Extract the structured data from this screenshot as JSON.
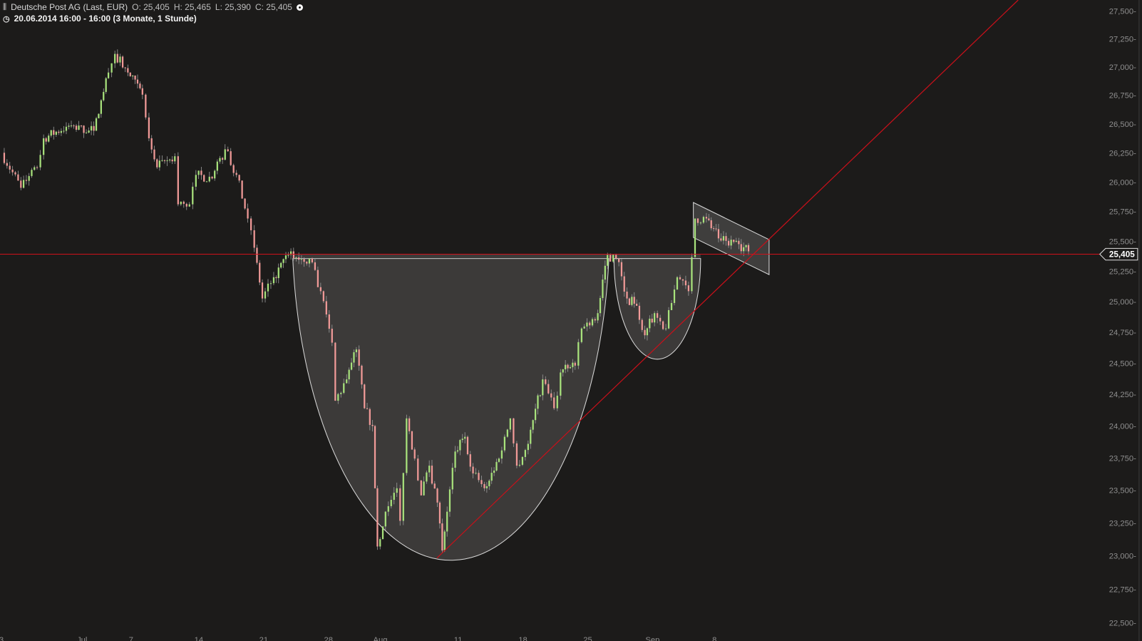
{
  "header": {
    "title": "Deutsche Post AG (Last, EUR)",
    "open": "O: 25,405",
    "high": "H: 25,465",
    "low": "L: 25,390",
    "close": "C: 25,405",
    "period": "20.06.2014 16:00 - 16:00 (3 Monate, 1 Stunde)",
    "icons": [
      "indicator-bars-icon",
      "settings-circle-icon",
      "clock-icon"
    ]
  },
  "chart_data": {
    "type": "candlestick",
    "y_scale": "log",
    "ylim": [
      22500,
      27500
    ],
    "y_ticks": [
      "27,500",
      "27,250",
      "27,000",
      "26,750",
      "26,500",
      "26,250",
      "26,000",
      "25,750",
      "25,500",
      "25,250",
      "25,000",
      "24,750",
      "24,500",
      "24,250",
      "24,000",
      "23,750",
      "23,500",
      "23,250",
      "23,000",
      "22,750",
      "22,500"
    ],
    "y_tick_values": [
      27500,
      27250,
      27000,
      26750,
      26500,
      26250,
      26000,
      25750,
      25500,
      25250,
      25000,
      24750,
      24500,
      24250,
      24000,
      23750,
      23500,
      23250,
      23000,
      22750,
      22500
    ],
    "x_ticks": [
      {
        "label": "3",
        "date": "2014-06-23"
      },
      {
        "label": "Jul",
        "date": "2014-07-01"
      },
      {
        "label": "7",
        "date": "2014-07-07"
      },
      {
        "label": "14",
        "date": "2014-07-14"
      },
      {
        "label": "21",
        "date": "2014-07-21"
      },
      {
        "label": "28",
        "date": "2014-07-28"
      },
      {
        "label": "Aug",
        "date": "2014-08-01"
      },
      {
        "label": "11",
        "date": "2014-08-11"
      },
      {
        "label": "18",
        "date": "2014-08-18"
      },
      {
        "label": "25",
        "date": "2014-08-25"
      },
      {
        "label": "Sep",
        "date": "2014-09-01"
      },
      {
        "label": "8",
        "date": "2014-09-08"
      }
    ],
    "last_price": 25405,
    "last_price_label": "25,405",
    "closes_approx": [
      [
        "2014-06-23 09:00",
        26250
      ],
      [
        "2014-06-24 13:00",
        25950
      ],
      [
        "2014-06-25 15:00",
        26125
      ],
      [
        "2014-06-26 11:00",
        26375
      ],
      [
        "2014-06-27 17:00",
        26475
      ],
      [
        "2014-07-02 10:00",
        26440
      ],
      [
        "2014-07-03 11:00",
        26950
      ],
      [
        "2014-07-03 15:00",
        27115
      ],
      [
        "2014-07-04 15:00",
        26950
      ],
      [
        "2014-07-07 16:00",
        26755
      ],
      [
        "2014-07-08 12:00",
        26375
      ],
      [
        "2014-07-08 17:00",
        26125
      ],
      [
        "2014-07-10 12:00",
        26220
      ],
      [
        "2014-07-10 14:00",
        25810
      ],
      [
        "2014-07-11 13:00",
        25810
      ],
      [
        "2014-07-14 09:00",
        26060
      ],
      [
        "2014-07-15 11:00",
        26030
      ],
      [
        "2014-07-16 11:00",
        26280
      ],
      [
        "2014-07-17 10:00",
        26060
      ],
      [
        "2014-07-18 09:00",
        25690
      ],
      [
        "2014-07-18 13:00",
        25445
      ],
      [
        "2014-07-21 10:00",
        25025
      ],
      [
        "2014-07-21 17:00",
        25200
      ],
      [
        "2014-07-23 10:00",
        25385
      ],
      [
        "2014-07-24 15:00",
        25355
      ],
      [
        "2014-07-25 14:00",
        25085
      ],
      [
        "2014-07-28 13:00",
        24665
      ],
      [
        "2014-07-28 15:00",
        24200
      ],
      [
        "2014-07-29 14:00",
        24370
      ],
      [
        "2014-07-30 12:00",
        24610
      ],
      [
        "2014-07-30 17:00",
        24140
      ],
      [
        "2014-07-31 14:00",
        24000
      ],
      [
        "2014-08-01 09:00",
        23070
      ],
      [
        "2014-08-01 14:00",
        23335
      ],
      [
        "2014-08-04 13:00",
        23515
      ],
      [
        "2014-08-04 15:00",
        23265
      ],
      [
        "2014-08-05 11:00",
        24060
      ],
      [
        "2014-08-05 16:00",
        23745
      ],
      [
        "2014-08-06 12:00",
        23460
      ],
      [
        "2014-08-07 09:00",
        23690
      ],
      [
        "2014-08-07 14:00",
        23405
      ],
      [
        "2014-08-08 09:00",
        23040
      ],
      [
        "2014-08-08 12:00",
        23335
      ],
      [
        "2014-08-11 09:00",
        23800
      ],
      [
        "2014-08-11 15:00",
        23915
      ],
      [
        "2014-08-12 12:00",
        23630
      ],
      [
        "2014-08-13 11:00",
        23515
      ],
      [
        "2014-08-14 12:00",
        23745
      ],
      [
        "2014-08-15 11:00",
        24060
      ],
      [
        "2014-08-15 15:00",
        23690
      ],
      [
        "2014-08-18 14:00",
        23860
      ],
      [
        "2014-08-19 15:00",
        24370
      ],
      [
        "2014-08-20 14:00",
        24140
      ],
      [
        "2014-08-21 10:00",
        24425
      ],
      [
        "2014-08-22 11:00",
        24480
      ],
      [
        "2014-08-22 15:00",
        24780
      ],
      [
        "2014-08-25 17:00",
        24905
      ],
      [
        "2014-08-26 15:00",
        25385
      ],
      [
        "2014-08-27 14:00",
        25325
      ],
      [
        "2014-08-28 11:00",
        25025
      ],
      [
        "2014-08-29 09:00",
        24965
      ],
      [
        "2014-08-29 14:00",
        24725
      ],
      [
        "2014-09-01 12:00",
        24905
      ],
      [
        "2014-09-02 11:00",
        24780
      ],
      [
        "2014-09-03 10:00",
        25200
      ],
      [
        "2014-09-04 09:00",
        25085
      ],
      [
        "2014-09-04 13:00",
        25690
      ],
      [
        "2014-09-05 12:00",
        25690
      ],
      [
        "2014-09-08 13:00",
        25505
      ],
      [
        "2014-09-09 16:00",
        25475
      ],
      [
        "2014-09-10 14:00",
        25415
      ]
    ],
    "colors": {
      "up": "#a8e27c",
      "down": "#f19a98",
      "wick": "#9a9a9a",
      "background": "#1c1b1a",
      "price_line": "#d0101a",
      "trendline": "#c8101a",
      "drawing": "#d9d9d9"
    },
    "annotations": [
      "cup-and-handle drawing",
      "bull flag channel",
      "rising support trendline",
      "horizontal line at last price"
    ],
    "grid": false
  }
}
